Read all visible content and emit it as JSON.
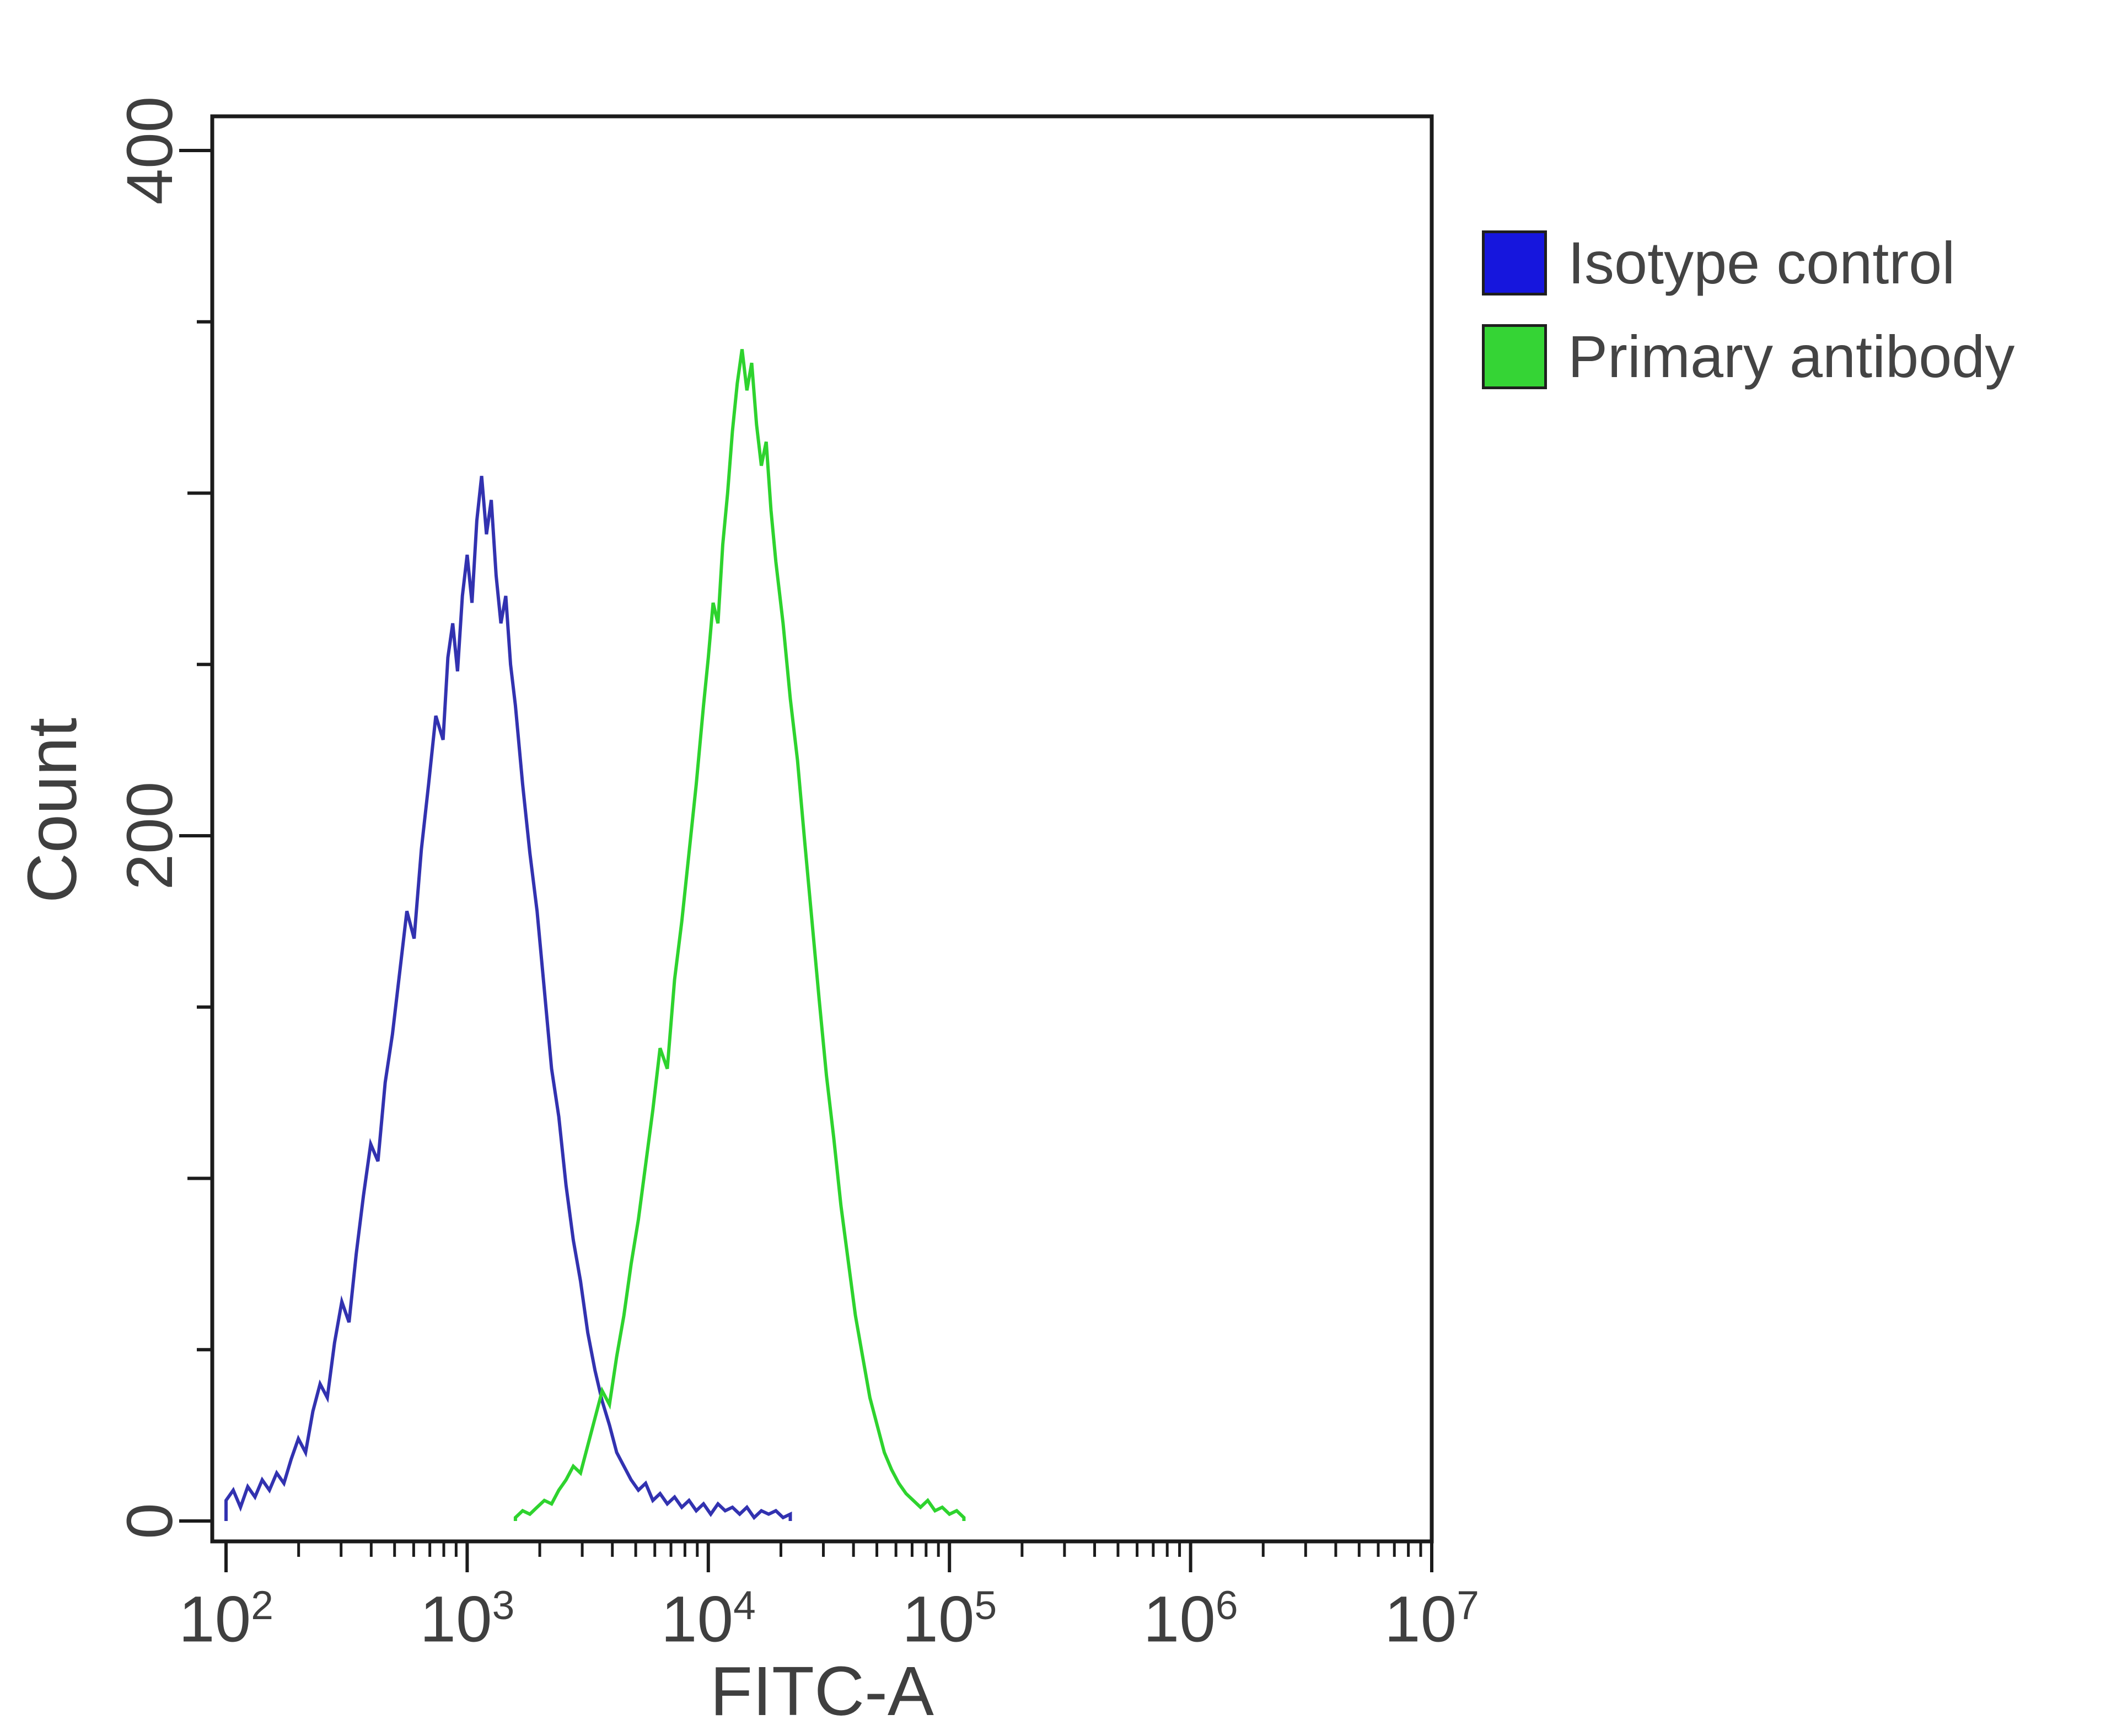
{
  "figure": {
    "kind": "flow cytometry overlay histogram"
  },
  "chart_data": {
    "type": "line",
    "subtype": "flow-cytometry-histogram-overlay",
    "title": "",
    "xlabel": "FITC-A",
    "ylabel": "Count",
    "x_scale": "log10",
    "xlim_log10": [
      2,
      7
    ],
    "x_tick_exponents": [
      2,
      3,
      4,
      5,
      6,
      7
    ],
    "ylim": [
      0,
      400
    ],
    "y_ticks": [
      0,
      200,
      400
    ],
    "grid": false,
    "legend_position": "outside upper right",
    "axis_color": "#1b1b1b",
    "text_color": "#3f3f3f",
    "series": [
      {
        "name": "Isotype control",
        "color": "#3232b0",
        "legend_color": "#1616dd",
        "peak_log10x": 3.06,
        "peak_count": 305,
        "points": [
          [
            2.0,
            6
          ],
          [
            2.03,
            9
          ],
          [
            2.06,
            4
          ],
          [
            2.09,
            10
          ],
          [
            2.12,
            7
          ],
          [
            2.15,
            12
          ],
          [
            2.18,
            9
          ],
          [
            2.21,
            14
          ],
          [
            2.24,
            11
          ],
          [
            2.27,
            18
          ],
          [
            2.3,
            24
          ],
          [
            2.33,
            20
          ],
          [
            2.36,
            32
          ],
          [
            2.39,
            40
          ],
          [
            2.42,
            36
          ],
          [
            2.45,
            52
          ],
          [
            2.48,
            64
          ],
          [
            2.51,
            58
          ],
          [
            2.54,
            78
          ],
          [
            2.57,
            95
          ],
          [
            2.6,
            110
          ],
          [
            2.63,
            105
          ],
          [
            2.66,
            128
          ],
          [
            2.69,
            142
          ],
          [
            2.72,
            160
          ],
          [
            2.75,
            178
          ],
          [
            2.78,
            170
          ],
          [
            2.81,
            196
          ],
          [
            2.84,
            215
          ],
          [
            2.87,
            235
          ],
          [
            2.9,
            228
          ],
          [
            2.92,
            252
          ],
          [
            2.94,
            262
          ],
          [
            2.96,
            248
          ],
          [
            2.98,
            270
          ],
          [
            3.0,
            282
          ],
          [
            3.02,
            268
          ],
          [
            3.04,
            292
          ],
          [
            3.06,
            305
          ],
          [
            3.08,
            288
          ],
          [
            3.1,
            298
          ],
          [
            3.12,
            276
          ],
          [
            3.14,
            262
          ],
          [
            3.16,
            270
          ],
          [
            3.18,
            250
          ],
          [
            3.2,
            238
          ],
          [
            3.23,
            215
          ],
          [
            3.26,
            195
          ],
          [
            3.29,
            178
          ],
          [
            3.32,
            155
          ],
          [
            3.35,
            132
          ],
          [
            3.38,
            118
          ],
          [
            3.41,
            98
          ],
          [
            3.44,
            82
          ],
          [
            3.47,
            70
          ],
          [
            3.5,
            55
          ],
          [
            3.53,
            44
          ],
          [
            3.56,
            35
          ],
          [
            3.59,
            28
          ],
          [
            3.62,
            20
          ],
          [
            3.65,
            16
          ],
          [
            3.68,
            12
          ],
          [
            3.71,
            9
          ],
          [
            3.74,
            11
          ],
          [
            3.77,
            6
          ],
          [
            3.8,
            8
          ],
          [
            3.83,
            5
          ],
          [
            3.86,
            7
          ],
          [
            3.89,
            4
          ],
          [
            3.92,
            6
          ],
          [
            3.95,
            3
          ],
          [
            3.98,
            5
          ],
          [
            4.01,
            2
          ],
          [
            4.04,
            5
          ],
          [
            4.07,
            3
          ],
          [
            4.1,
            4
          ],
          [
            4.13,
            2
          ],
          [
            4.16,
            4
          ],
          [
            4.19,
            1
          ],
          [
            4.22,
            3
          ],
          [
            4.25,
            2
          ],
          [
            4.28,
            3
          ],
          [
            4.31,
            1
          ],
          [
            4.34,
            2
          ]
        ]
      },
      {
        "name": "Primary antibody",
        "color": "#2ed32e",
        "legend_color": "#35d435",
        "peak_log10x": 4.14,
        "peak_count": 342,
        "points": [
          [
            3.2,
            1
          ],
          [
            3.23,
            3
          ],
          [
            3.26,
            2
          ],
          [
            3.29,
            4
          ],
          [
            3.32,
            6
          ],
          [
            3.35,
            5
          ],
          [
            3.38,
            9
          ],
          [
            3.41,
            12
          ],
          [
            3.44,
            16
          ],
          [
            3.47,
            14
          ],
          [
            3.5,
            22
          ],
          [
            3.53,
            30
          ],
          [
            3.56,
            38
          ],
          [
            3.59,
            34
          ],
          [
            3.62,
            48
          ],
          [
            3.65,
            60
          ],
          [
            3.68,
            75
          ],
          [
            3.71,
            88
          ],
          [
            3.74,
            104
          ],
          [
            3.77,
            120
          ],
          [
            3.8,
            138
          ],
          [
            3.83,
            132
          ],
          [
            3.86,
            158
          ],
          [
            3.89,
            175
          ],
          [
            3.92,
            195
          ],
          [
            3.95,
            215
          ],
          [
            3.98,
            238
          ],
          [
            4.0,
            252
          ],
          [
            4.02,
            268
          ],
          [
            4.04,
            262
          ],
          [
            4.06,
            285
          ],
          [
            4.08,
            300
          ],
          [
            4.1,
            318
          ],
          [
            4.12,
            332
          ],
          [
            4.14,
            342
          ],
          [
            4.16,
            330
          ],
          [
            4.18,
            338
          ],
          [
            4.2,
            320
          ],
          [
            4.22,
            308
          ],
          [
            4.24,
            315
          ],
          [
            4.26,
            295
          ],
          [
            4.28,
            280
          ],
          [
            4.31,
            262
          ],
          [
            4.34,
            240
          ],
          [
            4.37,
            222
          ],
          [
            4.4,
            198
          ],
          [
            4.43,
            175
          ],
          [
            4.46,
            152
          ],
          [
            4.49,
            130
          ],
          [
            4.52,
            112
          ],
          [
            4.55,
            92
          ],
          [
            4.58,
            76
          ],
          [
            4.61,
            60
          ],
          [
            4.64,
            48
          ],
          [
            4.67,
            36
          ],
          [
            4.7,
            28
          ],
          [
            4.73,
            20
          ],
          [
            4.76,
            15
          ],
          [
            4.79,
            11
          ],
          [
            4.82,
            8
          ],
          [
            4.85,
            6
          ],
          [
            4.88,
            4
          ],
          [
            4.91,
            6
          ],
          [
            4.94,
            3
          ],
          [
            4.97,
            4
          ],
          [
            5.0,
            2
          ],
          [
            5.03,
            3
          ],
          [
            5.06,
            1
          ]
        ]
      }
    ]
  }
}
